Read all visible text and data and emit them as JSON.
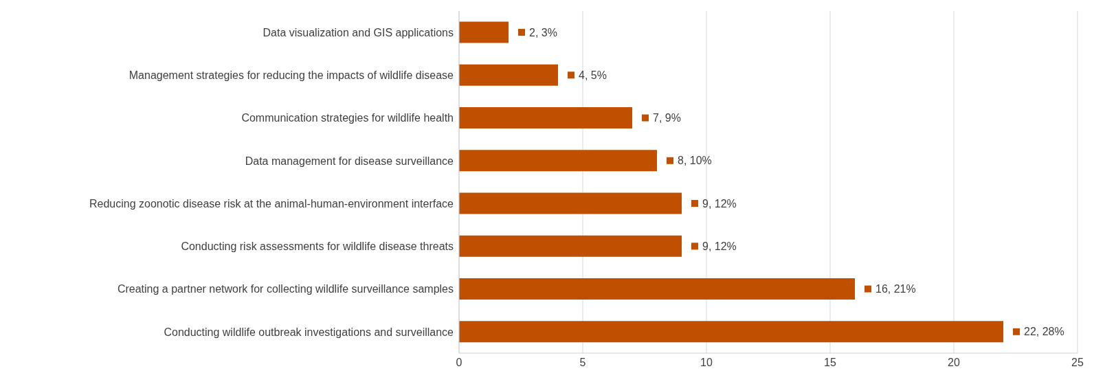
{
  "chart_data": {
    "type": "bar",
    "orientation": "horizontal",
    "categories": [
      "Data visualization and GIS applications",
      "Management strategies for reducing the impacts of wildlife disease",
      "Communication strategies for wildlife health",
      "Data management for disease surveillance",
      "Reducing zoonotic disease risk at the animal-human-environment interface",
      "Conducting risk assessments for wildlife disease threats",
      "Creating a partner network for collecting wildlife surveillance samples",
      "Conducting wildlife outbreak investigations and surveillance"
    ],
    "values": [
      2,
      4,
      7,
      8,
      9,
      9,
      16,
      22
    ],
    "value_labels": [
      "2, 3%",
      "4, 5%",
      "7, 9%",
      "8, 10%",
      "9, 12%",
      "9, 12%",
      "16, 21%",
      "22, 28%"
    ],
    "color": "#c05000",
    "xlim": [
      0,
      25
    ],
    "xticks": [
      0,
      5,
      10,
      15,
      20,
      25
    ],
    "grid": "x"
  }
}
